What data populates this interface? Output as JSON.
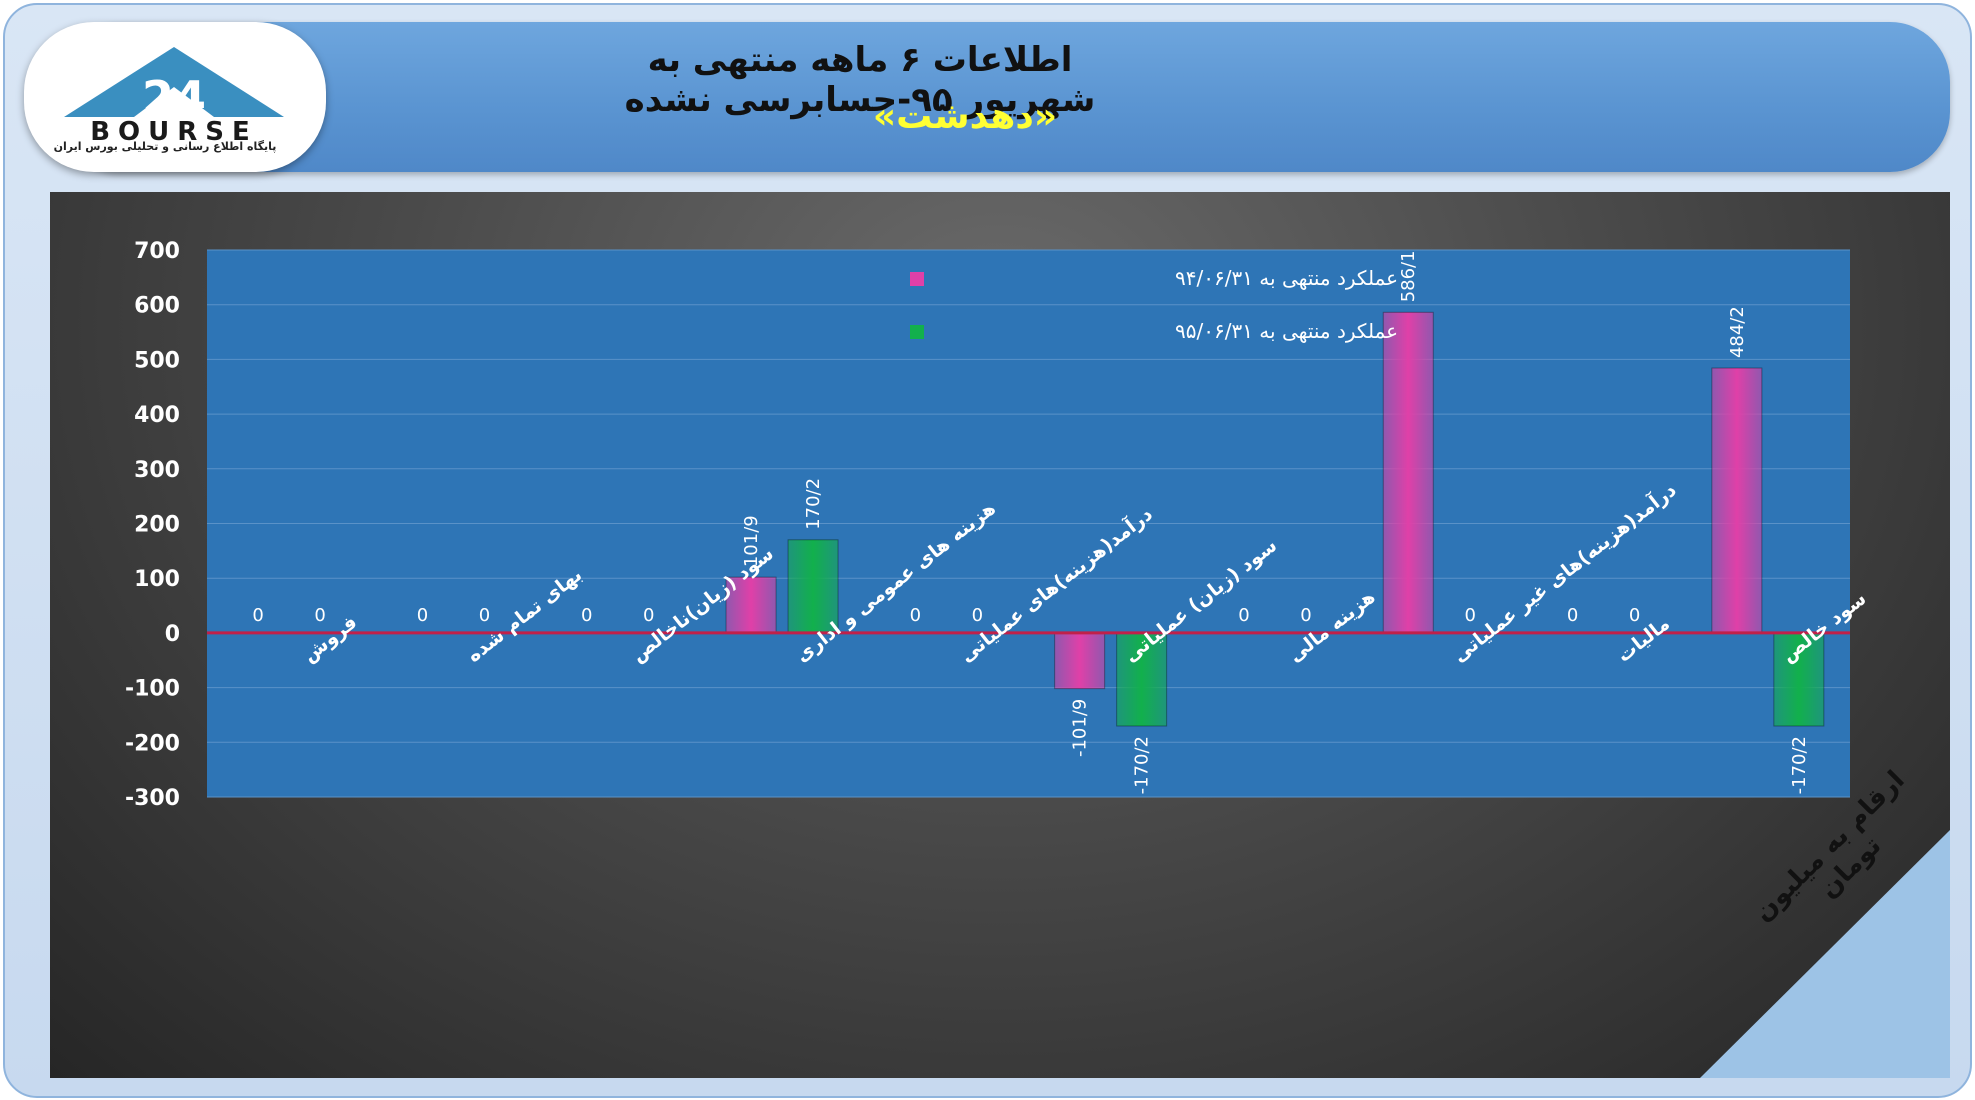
{
  "header": {
    "title": "اطلاعات ۶ ماهه منتهی به شهریور ۹۵-حسابرسی نشده",
    "subtitle": "«دهدشت»"
  },
  "logo": {
    "wordmark": "BOURSE",
    "numeral": "24",
    "caption": "پایگاه اطلاع رسانی و تحلیلی بورس ایران"
  },
  "note": "ارقام به میلیون تومان",
  "colors": {
    "plot_bg": "#2e75b6",
    "series_1": "#e040a8",
    "series_2": "#12b04c",
    "zero_line": "#c0204a"
  },
  "chart_data": {
    "type": "bar",
    "ylim": [
      -300,
      700
    ],
    "yticks": [
      700,
      600,
      500,
      400,
      300,
      200,
      100,
      0,
      -100,
      -200,
      -300
    ],
    "grid": true,
    "legend_position": "top-center",
    "categories": [
      "فروش",
      "بهای تمام شده",
      "سود (زیان)ناخالص",
      "هزینه های عمومی و اداری",
      "درآمد(هزینه)های عملیاتی",
      "سود (زیان) عملیاتی",
      "هزینه مالی",
      "درآمد(هزینه)های غیر عملیاتی",
      "مالیات",
      "سود خالص"
    ],
    "series": [
      {
        "name": "عملکرد منتهی به ۹۴/۰۶/۳۱",
        "values": [
          0,
          0,
          0,
          101.9,
          0,
          -101.9,
          0,
          586.1,
          0,
          484.2
        ],
        "labels": [
          "0",
          "0",
          "0",
          "101/9",
          "0",
          "-101/9",
          "0",
          "586/1",
          "0",
          "484/2"
        ]
      },
      {
        "name": "عملکرد منتهی به ۹۵/۰۶/۳۱",
        "values": [
          0,
          0,
          0,
          170.2,
          0,
          -170.2,
          0,
          0,
          0,
          -170.2
        ],
        "labels": [
          "0",
          "0",
          "0",
          "170/2",
          "0",
          "-170/2",
          "0",
          "0",
          "0",
          "-170/2"
        ]
      }
    ]
  }
}
